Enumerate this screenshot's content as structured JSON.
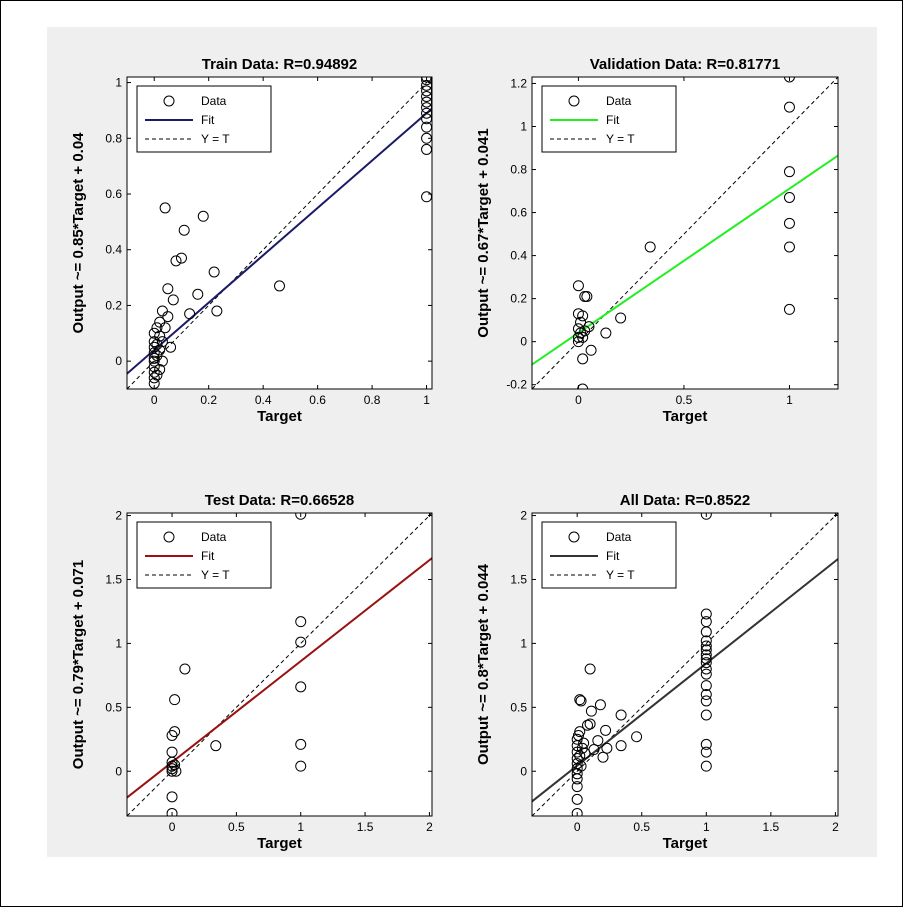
{
  "chart_data": [
    {
      "type": "scatter",
      "title": "Train Data: R=0.94892",
      "xlabel": "Target",
      "ylabel": "Output ~= 0.85*Target + 0.04",
      "xlim": [
        -0.1,
        1.02
      ],
      "ylim": [
        -0.1,
        1.02
      ],
      "xticks": [
        "0",
        "0.2",
        "0.4",
        "0.6",
        "0.8",
        "1"
      ],
      "xtick_values": [
        0,
        0.2,
        0.4,
        0.6,
        0.8,
        1
      ],
      "yticks": [
        "0",
        "0.2",
        "0.4",
        "0.6",
        "0.8",
        "1"
      ],
      "ytick_values": [
        0,
        0.2,
        0.4,
        0.6,
        0.8,
        1
      ],
      "fit": {
        "slope": 0.85,
        "intercept": 0.04,
        "color": "#1a1a66"
      },
      "legend": {
        "placement": "top-left",
        "entries": [
          "Data",
          "Fit",
          "Y = T"
        ]
      },
      "points": [
        [
          0,
          -0.08
        ],
        [
          0,
          -0.06
        ],
        [
          0,
          -0.04
        ],
        [
          0,
          -0.02
        ],
        [
          0,
          0
        ],
        [
          0,
          0.01
        ],
        [
          0,
          0.03
        ],
        [
          0,
          0.05
        ],
        [
          0,
          0.07
        ],
        [
          0,
          0.1
        ],
        [
          0.01,
          -0.05
        ],
        [
          0.01,
          0.02
        ],
        [
          0.01,
          0.06
        ],
        [
          0.01,
          0.12
        ],
        [
          0.02,
          -0.03
        ],
        [
          0.02,
          0.04
        ],
        [
          0.02,
          0.09
        ],
        [
          0.02,
          0.14
        ],
        [
          0.03,
          0.0
        ],
        [
          0.03,
          0.07
        ],
        [
          0.03,
          0.18
        ],
        [
          0.04,
          0.12
        ],
        [
          0.04,
          0.55
        ],
        [
          0.05,
          0.16
        ],
        [
          0.05,
          0.26
        ],
        [
          0.06,
          0.05
        ],
        [
          0.07,
          0.22
        ],
        [
          0.08,
          0.36
        ],
        [
          0.1,
          0.37
        ],
        [
          0.11,
          0.47
        ],
        [
          0.13,
          0.17
        ],
        [
          0.16,
          0.24
        ],
        [
          0.18,
          0.52
        ],
        [
          0.22,
          0.32
        ],
        [
          0.23,
          0.18
        ],
        [
          0.46,
          0.27
        ],
        [
          1,
          0.59
        ],
        [
          1,
          0.76
        ],
        [
          1,
          0.8
        ],
        [
          1,
          0.84
        ],
        [
          1,
          0.87
        ],
        [
          1,
          0.89
        ],
        [
          1,
          0.91
        ],
        [
          1,
          0.93
        ],
        [
          1,
          0.95
        ],
        [
          1,
          0.97
        ],
        [
          1,
          0.99
        ],
        [
          1,
          1.01
        ],
        [
          1,
          1.02
        ]
      ]
    },
    {
      "type": "scatter",
      "title": "Validation Data: R=0.81771",
      "xlabel": "Target",
      "ylabel": "Output ~= 0.67*Target + 0.041",
      "xlim": [
        -0.22,
        1.23
      ],
      "ylim": [
        -0.22,
        1.23
      ],
      "xticks": [
        "0",
        "0.5",
        "1"
      ],
      "xtick_values": [
        0,
        0.5,
        1
      ],
      "yticks": [
        "-0.2",
        "0",
        "0.2",
        "0.4",
        "0.6",
        "0.8",
        "1",
        "1.2"
      ],
      "ytick_values": [
        -0.2,
        0,
        0.2,
        0.4,
        0.6,
        0.8,
        1,
        1.2
      ],
      "fit": {
        "slope": 0.67,
        "intercept": 0.041,
        "color": "#22ee22"
      },
      "legend": {
        "placement": "top-left",
        "entries": [
          "Data",
          "Fit",
          "Y = T"
        ]
      },
      "points": [
        [
          0,
          0.26
        ],
        [
          0,
          0.13
        ],
        [
          0,
          0.06
        ],
        [
          0,
          0.02
        ],
        [
          0,
          0.0
        ],
        [
          0.01,
          0.09
        ],
        [
          0.01,
          0.04
        ],
        [
          0.02,
          0.12
        ],
        [
          0.02,
          0.02
        ],
        [
          0.02,
          -0.08
        ],
        [
          0.02,
          -0.22
        ],
        [
          0.03,
          0.21
        ],
        [
          0.03,
          0.05
        ],
        [
          0.04,
          0.21
        ],
        [
          0.05,
          0.07
        ],
        [
          0.06,
          -0.04
        ],
        [
          0.13,
          0.04
        ],
        [
          0.2,
          0.11
        ],
        [
          0.34,
          0.44
        ],
        [
          1,
          1.23
        ],
        [
          1,
          1.09
        ],
        [
          1,
          0.79
        ],
        [
          1,
          0.67
        ],
        [
          1,
          0.55
        ],
        [
          1,
          0.44
        ],
        [
          1,
          0.15
        ]
      ]
    },
    {
      "type": "scatter",
      "title": "Test Data: R=0.66528",
      "xlabel": "Target",
      "ylabel": "Output ~= 0.79*Target + 0.071",
      "xlim": [
        -0.35,
        2.02
      ],
      "ylim": [
        -0.35,
        2.02
      ],
      "xticks": [
        "0",
        "0.5",
        "1",
        "1.5",
        "2"
      ],
      "xtick_values": [
        0,
        0.5,
        1,
        1.5,
        2
      ],
      "yticks": [
        "0",
        "0.5",
        "1",
        "1.5",
        "2"
      ],
      "ytick_values": [
        0,
        0.5,
        1,
        1.5,
        2
      ],
      "fit": {
        "slope": 0.79,
        "intercept": 0.071,
        "color": "#991111"
      },
      "legend": {
        "placement": "top-left",
        "entries": [
          "Data",
          "Fit",
          "Y = T"
        ]
      },
      "points": [
        [
          0,
          -0.33
        ],
        [
          0,
          -0.2
        ],
        [
          0,
          0
        ],
        [
          0,
          0.02
        ],
        [
          0,
          0.04
        ],
        [
          0,
          0.07
        ],
        [
          0,
          0.15
        ],
        [
          0,
          0.28
        ],
        [
          0.02,
          0.31
        ],
        [
          0.02,
          0.05
        ],
        [
          0.03,
          0.0
        ],
        [
          0.02,
          0.56
        ],
        [
          0.1,
          0.8
        ],
        [
          0.34,
          0.2
        ],
        [
          1,
          2.01
        ],
        [
          1,
          1.17
        ],
        [
          1,
          1.01
        ],
        [
          1,
          0.66
        ],
        [
          1,
          0.21
        ],
        [
          1,
          0.04
        ]
      ]
    },
    {
      "type": "scatter",
      "title": "All Data: R=0.8522",
      "xlabel": "Target",
      "ylabel": "Output ~= 0.8*Target + 0.044",
      "xlim": [
        -0.35,
        2.02
      ],
      "ylim": [
        -0.35,
        2.02
      ],
      "xticks": [
        "0",
        "0.5",
        "1",
        "1.5",
        "2"
      ],
      "xtick_values": [
        0,
        0.5,
        1,
        1.5,
        2
      ],
      "yticks": [
        "0",
        "0.5",
        "1",
        "1.5",
        "2"
      ],
      "ytick_values": [
        0,
        0.5,
        1,
        1.5,
        2
      ],
      "fit": {
        "slope": 0.8,
        "intercept": 0.044,
        "color": "#333333"
      },
      "legend": {
        "placement": "top-left",
        "entries": [
          "Data",
          "Fit",
          "Y = T"
        ]
      },
      "points": [
        [
          0,
          -0.33
        ],
        [
          0,
          -0.22
        ],
        [
          0,
          -0.12
        ],
        [
          0,
          -0.06
        ],
        [
          0,
          -0.02
        ],
        [
          0,
          0.02
        ],
        [
          0,
          0.06
        ],
        [
          0,
          0.1
        ],
        [
          0,
          0.15
        ],
        [
          0,
          0.2
        ],
        [
          0,
          0.25
        ],
        [
          0.01,
          0.28
        ],
        [
          0.02,
          0.56
        ],
        [
          0.03,
          0.55
        ],
        [
          0.02,
          0.31
        ],
        [
          0.02,
          0.12
        ],
        [
          0.03,
          0.04
        ],
        [
          0.04,
          0.18
        ],
        [
          0.05,
          0.22
        ],
        [
          0.06,
          0.14
        ],
        [
          0.08,
          0.36
        ],
        [
          0.1,
          0.8
        ],
        [
          0.1,
          0.37
        ],
        [
          0.11,
          0.47
        ],
        [
          0.13,
          0.17
        ],
        [
          0.16,
          0.24
        ],
        [
          0.18,
          0.52
        ],
        [
          0.2,
          0.11
        ],
        [
          0.22,
          0.32
        ],
        [
          0.23,
          0.18
        ],
        [
          0.34,
          0.44
        ],
        [
          0.34,
          0.2
        ],
        [
          0.46,
          0.27
        ],
        [
          1,
          2.01
        ],
        [
          1,
          1.23
        ],
        [
          1,
          1.17
        ],
        [
          1,
          1.09
        ],
        [
          1,
          1.02
        ],
        [
          1,
          0.98
        ],
        [
          1,
          0.95
        ],
        [
          1,
          0.91
        ],
        [
          1,
          0.88
        ],
        [
          1,
          0.85
        ],
        [
          1,
          0.8
        ],
        [
          1,
          0.76
        ],
        [
          1,
          0.67
        ],
        [
          1,
          0.6
        ],
        [
          1,
          0.55
        ],
        [
          1,
          0.44
        ],
        [
          1,
          0.21
        ],
        [
          1,
          0.15
        ],
        [
          1,
          0.04
        ]
      ]
    }
  ]
}
